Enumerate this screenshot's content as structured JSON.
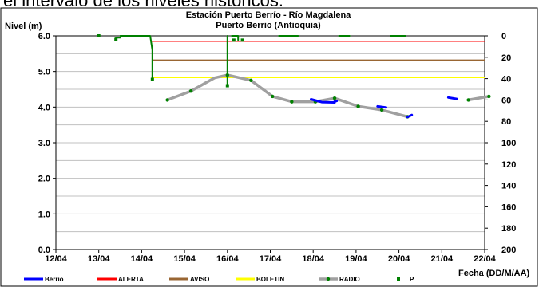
{
  "page": {
    "caption": "el intervalo de los niveles históricos."
  },
  "chart_data": {
    "type": "line",
    "title": "Estación Puerto Berrío - Río Magdalena",
    "subtitle": "Puerto Berrio (Antioquia)",
    "ylabel": "Nivel (m)",
    "xlabel": "Fecha (DD/M/AA)",
    "ylim": [
      0,
      6
    ],
    "y2lim": [
      200,
      0
    ],
    "xlim": [
      0,
      10
    ],
    "x_ticks": [
      "12/04",
      "13/04",
      "14/04",
      "15/04",
      "16/04",
      "17/04",
      "18/04",
      "19/04",
      "20/04",
      "21/04",
      "22/04"
    ],
    "y_ticks": [
      "0.0",
      "1.0",
      "2.0",
      "3.0",
      "4.0",
      "5.0",
      "6.0"
    ],
    "y2_ticks": [
      "0",
      "20",
      "40",
      "60",
      "80",
      "100",
      "120",
      "140",
      "160",
      "180",
      "200"
    ],
    "grid": true,
    "legend": "bottom",
    "series": [
      {
        "name": "Berrio",
        "color": "#0000ff",
        "segments": [
          [
            [
              5.95,
              4.22
            ],
            [
              6.2,
              4.14
            ],
            [
              6.5,
              4.13
            ]
          ],
          [
            [
              6.5,
              4.16
            ],
            [
              6.55,
              4.17
            ]
          ],
          [
            [
              7.5,
              4.02
            ],
            [
              7.7,
              3.99
            ]
          ],
          [
            [
              8.2,
              3.72
            ],
            [
              8.3,
              3.78
            ]
          ],
          [
            [
              9.15,
              4.27
            ],
            [
              9.35,
              4.23
            ]
          ]
        ]
      },
      {
        "name": "ALERTA",
        "color": "#ff0000",
        "segments": [
          [
            [
              2.25,
              5.85
            ],
            [
              10.0,
              5.85
            ]
          ]
        ]
      },
      {
        "name": "AVISO",
        "color": "#996633",
        "segments": [
          [
            [
              2.25,
              5.32
            ],
            [
              10.0,
              5.32
            ]
          ]
        ]
      },
      {
        "name": "BOLETIN",
        "color": "#ffff00",
        "segments": [
          [
            [
              2.25,
              4.83
            ],
            [
              10.0,
              4.83
            ]
          ]
        ]
      },
      {
        "name": "RADIO",
        "color": "#a0a0a0",
        "segments": [
          [
            [
              2.6,
              4.2
            ],
            [
              3.15,
              4.45
            ],
            [
              3.7,
              4.82
            ],
            [
              4.0,
              4.9
            ],
            [
              4.55,
              4.75
            ],
            [
              5.05,
              4.3
            ],
            [
              5.5,
              4.15
            ],
            [
              6.05,
              4.15
            ],
            [
              6.5,
              4.25
            ],
            [
              7.05,
              4.02
            ],
            [
              7.6,
              3.92
            ],
            [
              8.2,
              3.73
            ]
          ],
          [
            [
              9.62,
              4.2
            ],
            [
              10.1,
              4.3
            ]
          ]
        ],
        "points": [
          [
            2.6,
            4.2
          ],
          [
            3.15,
            4.45
          ],
          [
            4.0,
            4.9
          ],
          [
            4.55,
            4.75
          ],
          [
            5.05,
            4.3
          ],
          [
            5.5,
            4.15
          ],
          [
            6.05,
            4.15
          ],
          [
            6.5,
            4.25
          ],
          [
            7.05,
            4.02
          ],
          [
            7.6,
            3.92
          ],
          [
            8.2,
            3.73
          ],
          [
            9.62,
            4.2
          ],
          [
            10.1,
            4.3
          ]
        ]
      },
      {
        "name": "P",
        "color": "#008000",
        "segments": [
          [
            [
              1.5,
              6.0
            ],
            [
              2.2,
              6.0
            ],
            [
              2.25,
              5.6
            ],
            [
              2.25,
              4.8
            ]
          ],
          [
            [
              1.4,
              5.95
            ],
            [
              1.5,
              5.95
            ]
          ],
          [
            [
              4.0,
              6.0
            ],
            [
              4.0,
              4.6
            ]
          ],
          [
            [
              4.1,
              6.0
            ],
            [
              4.25,
              6.0
            ],
            [
              4.25,
              5.88
            ]
          ],
          [
            [
              5.2,
              6.0
            ],
            [
              5.65,
              6.0
            ]
          ],
          [
            [
              6.6,
              6.0
            ],
            [
              6.85,
              6.0
            ]
          ],
          [
            [
              7.8,
              6.0
            ],
            [
              8.15,
              6.0
            ]
          ]
        ],
        "points": [
          [
            1.0,
            6.0
          ],
          [
            1.4,
            5.9
          ],
          [
            2.25,
            4.78
          ],
          [
            4.0,
            4.6
          ],
          [
            4.15,
            5.88
          ],
          [
            4.35,
            5.88
          ]
        ]
      }
    ]
  }
}
